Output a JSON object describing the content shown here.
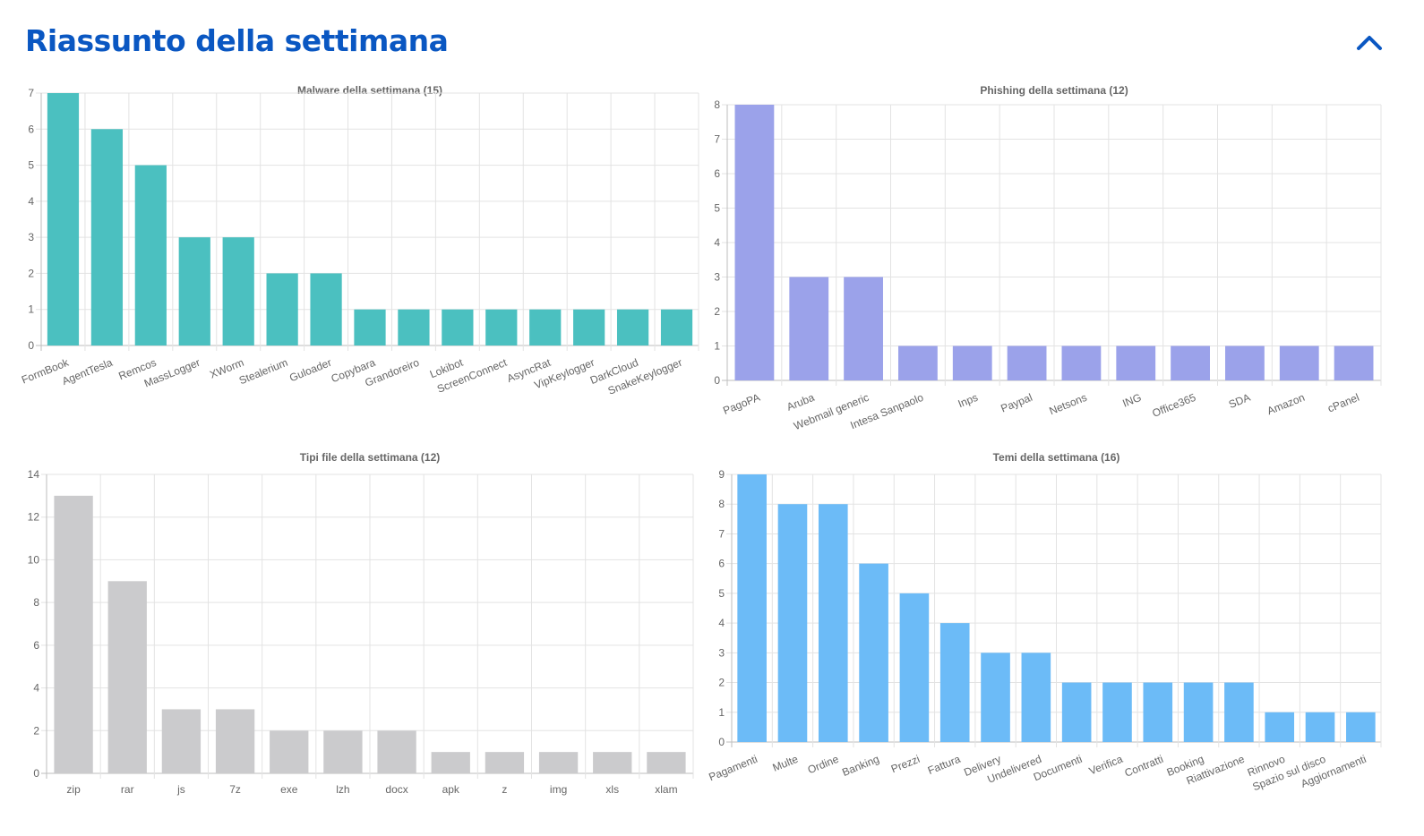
{
  "header": {
    "title": "Riassunto della settimana",
    "collapse_icon": "chevron-up-icon"
  },
  "chart_data": [
    {
      "type": "bar",
      "title": "Malware della settimana (15)",
      "color": "#4bc0c0",
      "categories": [
        "FormBook",
        "AgentTesla",
        "Remcos",
        "MassLogger",
        "XWorm",
        "Stealerium",
        "Guloader",
        "Copybara",
        "Grandoreiro",
        "Lokibot",
        "ScreenConnect",
        "AsyncRat",
        "VipKeylogger",
        "DarkCloud",
        "SnakeKeylogger"
      ],
      "values": [
        7,
        6,
        5,
        3,
        3,
        2,
        2,
        1,
        1,
        1,
        1,
        1,
        1,
        1,
        1
      ],
      "ylim": [
        0,
        7
      ],
      "yticks": [
        "0",
        "1",
        "2",
        "3",
        "4",
        "5",
        "6",
        "7"
      ],
      "grid": true,
      "xlabel": "",
      "ylabel": ""
    },
    {
      "type": "bar",
      "title": "Phishing della settimana (12)",
      "color": "#9ba2ea",
      "categories": [
        "PagoPA",
        "Aruba",
        "Webmail generic",
        "Intesa Sanpaolo",
        "Inps",
        "Paypal",
        "Netsons",
        "ING",
        "Office365",
        "SDA",
        "Amazon",
        "cPanel"
      ],
      "values": [
        8,
        3,
        3,
        1,
        1,
        1,
        1,
        1,
        1,
        1,
        1,
        1
      ],
      "ylim": [
        0,
        8
      ],
      "yticks": [
        "0",
        "1",
        "2",
        "3",
        "4",
        "5",
        "6",
        "7",
        "8"
      ],
      "grid": true,
      "xlabel": "",
      "ylabel": ""
    },
    {
      "type": "bar",
      "title": "Tipi file della settimana (12)",
      "color": "#cbcbcd",
      "categories": [
        "zip",
        "rar",
        "js",
        "7z",
        "exe",
        "lzh",
        "docx",
        "apk",
        "z",
        "img",
        "xls",
        "xlam"
      ],
      "values": [
        13,
        9,
        3,
        3,
        2,
        2,
        2,
        1,
        1,
        1,
        1,
        1
      ],
      "ylim": [
        0,
        14
      ],
      "yticks": [
        "0",
        "2",
        "4",
        "6",
        "8",
        "10",
        "12",
        "14"
      ],
      "grid": true,
      "xlabel": "",
      "ylabel": ""
    },
    {
      "type": "bar",
      "title": "Temi della settimana (16)",
      "color": "#6cbbf7",
      "categories": [
        "Pagamenti",
        "Multe",
        "Ordine",
        "Banking",
        "Prezzi",
        "Fattura",
        "Delivery",
        "Undelivered",
        "Documenti",
        "Verifica",
        "Contratti",
        "Booking",
        "Riattivazione",
        "Rinnovo",
        "Spazio sul disco",
        "Aggiornamenti"
      ],
      "values": [
        9,
        8,
        8,
        6,
        5,
        4,
        3,
        3,
        2,
        2,
        2,
        2,
        2,
        1,
        1,
        1
      ],
      "ylim": [
        0,
        9
      ],
      "yticks": [
        "0",
        "1",
        "2",
        "3",
        "4",
        "5",
        "6",
        "7",
        "8",
        "9"
      ],
      "grid": true,
      "xlabel": "",
      "ylabel": ""
    }
  ]
}
